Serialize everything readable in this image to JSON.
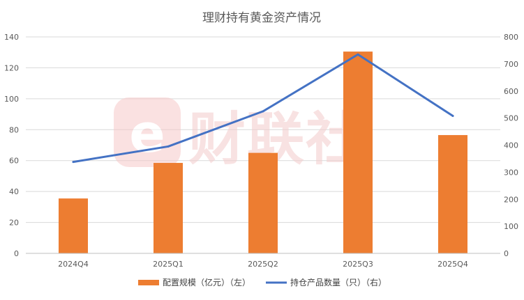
{
  "chart_data": {
    "type": "bar",
    "title": "理财持有黄金资产情况",
    "categories": [
      "2024Q4",
      "2025Q1",
      "2025Q2",
      "2025Q3",
      "2025Q4"
    ],
    "series": [
      {
        "name": "配置规模（亿元）（左）",
        "type": "bar",
        "axis": "left",
        "color": "#ED7D31",
        "values": [
          35.5,
          58.5,
          65,
          130.5,
          76.5
        ]
      },
      {
        "name": "持仓产品数量（只）（右）",
        "type": "line",
        "axis": "right",
        "color": "#4472C4",
        "values": [
          338,
          395,
          525,
          735,
          508
        ]
      }
    ],
    "ylim_left": [
      0,
      140
    ],
    "yticks_left": [
      "0",
      "20",
      "40",
      "60",
      "80",
      "100",
      "120",
      "140"
    ],
    "ylim_right": [
      0,
      800
    ],
    "yticks_right": [
      "0",
      "100",
      "200",
      "300",
      "400",
      "500",
      "600",
      "700",
      "800"
    ],
    "grid": true,
    "legend_position": "bottom"
  },
  "watermark": {
    "icon": "cailian-logo-icon",
    "text": "财联社",
    "color": "#f6c9c9"
  }
}
